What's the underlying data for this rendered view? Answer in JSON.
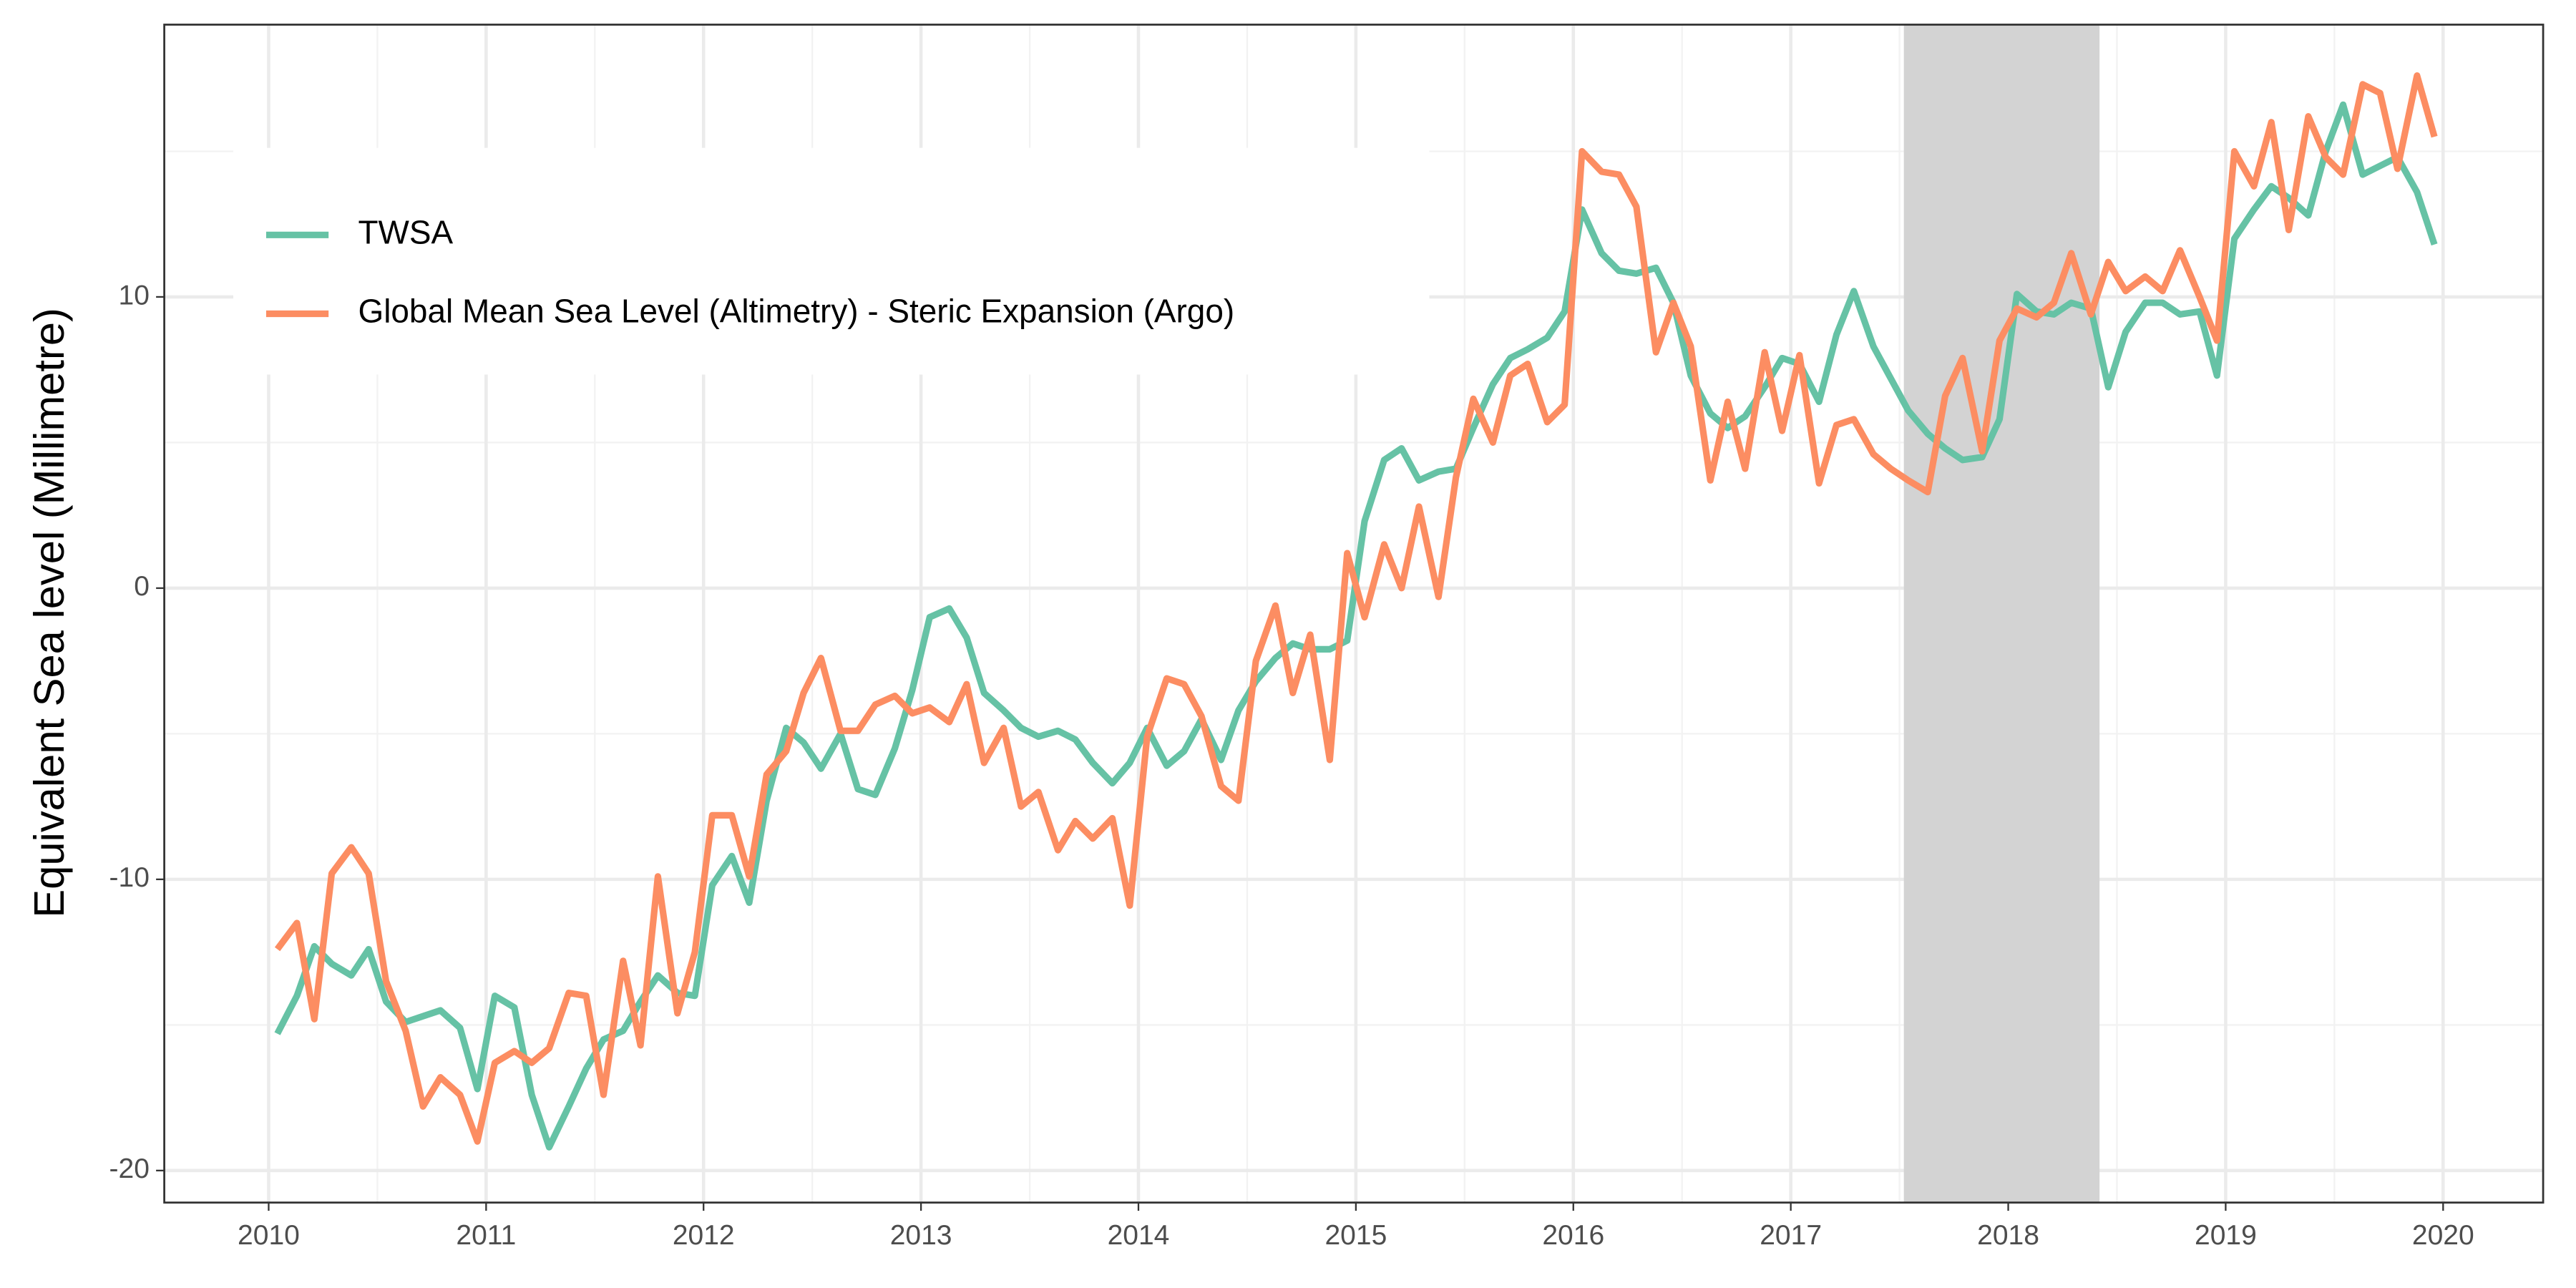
{
  "chart_data": {
    "type": "line",
    "y_label": "Equivalent Sea level (Millimetre)",
    "x": [
      2010.04,
      2010.13,
      2010.21,
      2010.29,
      2010.38,
      2010.46,
      2010.54,
      2010.63,
      2010.71,
      2010.79,
      2010.88,
      2010.96,
      2011.04,
      2011.13,
      2011.21,
      2011.29,
      2011.38,
      2011.46,
      2011.54,
      2011.63,
      2011.71,
      2011.79,
      2011.88,
      2011.96,
      2012.04,
      2012.13,
      2012.21,
      2012.29,
      2012.38,
      2012.46,
      2012.54,
      2012.63,
      2012.71,
      2012.79,
      2012.88,
      2012.96,
      2013.04,
      2013.13,
      2013.21,
      2013.29,
      2013.38,
      2013.46,
      2013.54,
      2013.63,
      2013.71,
      2013.79,
      2013.88,
      2013.96,
      2014.04,
      2014.13,
      2014.21,
      2014.29,
      2014.38,
      2014.46,
      2014.54,
      2014.63,
      2014.71,
      2014.79,
      2014.88,
      2014.96,
      2015.04,
      2015.13,
      2015.21,
      2015.29,
      2015.38,
      2015.46,
      2015.54,
      2015.63,
      2015.71,
      2015.79,
      2015.88,
      2015.96,
      2016.04,
      2016.13,
      2016.21,
      2016.29,
      2016.38,
      2016.46,
      2016.54,
      2016.63,
      2016.71,
      2016.79,
      2016.88,
      2016.96,
      2017.04,
      2017.13,
      2017.21,
      2017.29,
      2017.38,
      2017.46,
      2017.54,
      2017.63,
      2017.71,
      2017.79,
      2017.88,
      2017.96,
      2018.04,
      2018.13,
      2018.21,
      2018.29,
      2018.38,
      2018.46,
      2018.54,
      2018.63,
      2018.71,
      2018.79,
      2018.88,
      2018.96,
      2019.04,
      2019.13,
      2019.21,
      2019.29,
      2019.38,
      2019.46,
      2019.54,
      2019.63,
      2019.71,
      2019.79,
      2019.88,
      2019.96
    ],
    "series": [
      {
        "name": "TWSA",
        "color": "#66c2a5",
        "values": [
          -15.3,
          -14.0,
          -12.3,
          -12.9,
          -13.3,
          -12.4,
          -14.2,
          -14.9,
          -14.7,
          -14.5,
          -15.1,
          -17.2,
          -14.0,
          -14.4,
          -17.4,
          -19.2,
          -17.8,
          -16.5,
          -15.5,
          -15.2,
          -14.2,
          -13.3,
          -13.9,
          -14.0,
          -10.2,
          -9.2,
          -10.8,
          -7.3,
          -4.8,
          -5.3,
          -6.2,
          -5.0,
          -6.9,
          -7.1,
          -5.5,
          -3.5,
          -1.0,
          -0.7,
          -1.7,
          -3.6,
          -4.2,
          -4.8,
          -5.1,
          -4.9,
          -5.2,
          -6.0,
          -6.7,
          -6.0,
          -4.8,
          -6.1,
          -5.6,
          -4.5,
          -5.9,
          -4.2,
          -3.2,
          -2.4,
          -1.9,
          -2.1,
          -2.1,
          -1.8,
          2.3,
          4.4,
          4.8,
          3.7,
          4.0,
          4.1,
          5.5,
          7.0,
          7.9,
          8.2,
          8.6,
          9.5,
          13.0,
          11.5,
          10.9,
          10.8,
          11.0,
          9.8,
          7.3,
          6.0,
          5.5,
          5.9,
          6.9,
          7.9,
          7.7,
          6.4,
          8.7,
          10.2,
          8.3,
          7.2,
          6.1,
          5.3,
          4.8,
          4.4,
          4.5,
          5.8,
          10.1,
          9.5,
          9.4,
          9.8,
          9.6,
          6.9,
          8.8,
          9.8,
          9.8,
          9.4,
          9.5,
          7.3,
          12.0,
          13.0,
          13.8,
          13.4,
          12.8,
          15.0,
          16.6,
          14.2,
          14.5,
          14.8,
          13.6,
          11.8
        ]
      },
      {
        "name": "Global Mean Sea Level (Altimetry) - Steric Expansion (Argo)",
        "color": "#fc8d62",
        "values": [
          -12.4,
          -11.5,
          -14.8,
          -9.8,
          -8.9,
          -9.8,
          -13.5,
          -15.2,
          -17.8,
          -16.8,
          -17.4,
          -19.0,
          -16.3,
          -15.9,
          -16.3,
          -15.8,
          -13.9,
          -14.0,
          -17.4,
          -12.8,
          -15.7,
          -9.9,
          -14.6,
          -12.5,
          -7.8,
          -7.8,
          -9.9,
          -6.4,
          -5.6,
          -3.6,
          -2.4,
          -4.9,
          -4.9,
          -4.0,
          -3.7,
          -4.3,
          -4.1,
          -4.6,
          -3.3,
          -6.0,
          -4.8,
          -7.5,
          -7.0,
          -9.0,
          -8.0,
          -8.6,
          -7.9,
          -10.9,
          -5.1,
          -3.1,
          -3.3,
          -4.4,
          -6.8,
          -7.3,
          -2.5,
          -0.6,
          -3.6,
          -1.6,
          -5.9,
          1.2,
          -1.0,
          1.5,
          0.0,
          2.8,
          -0.3,
          3.8,
          6.5,
          5.0,
          7.3,
          7.7,
          5.7,
          6.3,
          15.0,
          14.3,
          14.2,
          13.1,
          8.1,
          9.8,
          8.3,
          3.7,
          6.4,
          4.1,
          8.1,
          5.4,
          8.0,
          3.6,
          5.6,
          5.8,
          4.6,
          4.1,
          3.7,
          3.3,
          6.6,
          7.9,
          4.7,
          8.5,
          9.6,
          9.3,
          9.8,
          11.5,
          9.4,
          11.2,
          10.2,
          10.7,
          10.2,
          11.6,
          10.0,
          8.5,
          15.0,
          13.8,
          16.0,
          12.3,
          16.2,
          14.8,
          14.2,
          17.3,
          17.0,
          14.4,
          17.6,
          15.5
        ]
      }
    ],
    "shaded_region": [
      2017.52,
      2018.42
    ],
    "shaded_color": "#d3d3d3",
    "xlim": [
      2009.52,
      2020.46
    ],
    "xticks": [
      2010,
      2011,
      2012,
      2013,
      2014,
      2015,
      2016,
      2017,
      2018,
      2019,
      2020
    ],
    "xminor": [
      2010.5,
      2011.5,
      2012.5,
      2013.5,
      2014.5,
      2015.5,
      2016.5,
      2017.5,
      2018.5,
      2019.5
    ],
    "ylim": [
      -21.1,
      19.35
    ],
    "yticks": [
      -20,
      -10,
      0,
      10
    ],
    "yminor": [
      -15,
      -5,
      5,
      15
    ],
    "grid": true,
    "legend": "top-left"
  }
}
